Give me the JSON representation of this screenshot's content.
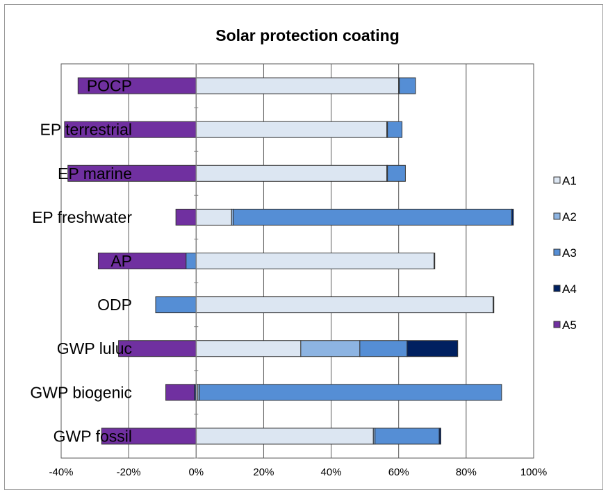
{
  "chart_data": {
    "type": "bar",
    "orientation": "horizontal",
    "stacked": true,
    "title": "Solar protection coating",
    "xlabel": "",
    "ylabel": "",
    "xlim": [
      -40,
      100
    ],
    "x_ticks": [
      -40,
      -20,
      0,
      20,
      40,
      60,
      80,
      100
    ],
    "x_tick_labels": [
      "-40%",
      "-20%",
      "0%",
      "20%",
      "40%",
      "60%",
      "80%",
      "100%"
    ],
    "grid": "vertical",
    "legend_position": "right",
    "categories": [
      "POCP",
      "EP terrestrial",
      "EP marine",
      "EP freshwater",
      "AP",
      "ODP",
      "GWP luluc",
      "GWP biogenic",
      "GWP fossil"
    ],
    "series": [
      {
        "name": "A1",
        "color": "#dce6f2",
        "values": [
          60.0,
          56.5,
          56.5,
          10.5,
          70.5,
          88.0,
          31.0,
          0.5,
          52.5
        ]
      },
      {
        "name": "A2",
        "color": "#8db4e2",
        "values": [
          0.2,
          0.2,
          0.2,
          0.5,
          0.2,
          0.2,
          17.5,
          0.5,
          0.5
        ]
      },
      {
        "name": "A3",
        "color": "#558ed5",
        "values": [
          4.8,
          4.3,
          5.3,
          82.5,
          -3.0,
          -12.0,
          14.0,
          89.5,
          19.0
        ]
      },
      {
        "name": "A4",
        "color": "#002060",
        "values": [
          0.0,
          0.0,
          0.0,
          0.5,
          0.0,
          0.0,
          15.0,
          -0.5,
          0.5
        ]
      },
      {
        "name": "A5",
        "color": "#7030a0",
        "values": [
          -35.0,
          -39.0,
          -38.0,
          -6.0,
          -26.0,
          0.0,
          -23.0,
          -8.5,
          -28.0
        ]
      }
    ]
  }
}
